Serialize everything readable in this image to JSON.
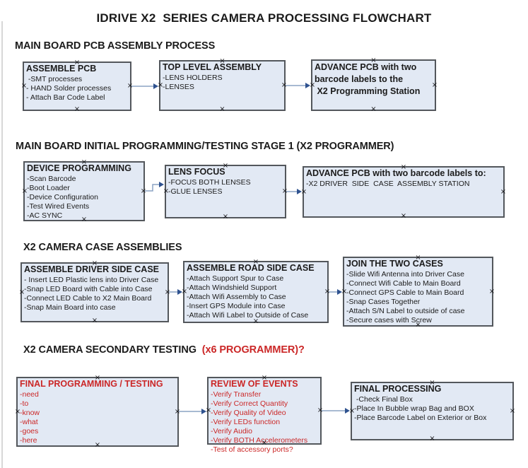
{
  "page": {
    "title": "IDRIVE X2  SERIES CAMERA PROCESSING FLOWCHART"
  },
  "colors": {
    "box_fill": "#e2e9f4",
    "box_border": "#53575c",
    "text_black": "#1b1b1b",
    "text_red": "#cb2727",
    "arrow_line": "#8ba3c4",
    "arrow_head": "#2f528f"
  },
  "icons": {
    "connection_point": "×"
  },
  "sections": [
    {
      "id": "pcb-assembly",
      "heading": [
        {
          "text": "MAIN BOARD PCB ASSEMBLY PROCESS",
          "red": false
        }
      ],
      "boxes": [
        {
          "id": "assemble-pcb",
          "red": false,
          "title_lines": [
            "ASSEMBLE PCB"
          ],
          "items": [
            " -SMT processes",
            "- HAND Solder processes",
            "- Attach Bar Code Label"
          ]
        },
        {
          "id": "top-level-assembly",
          "red": false,
          "title_lines": [
            "TOP LEVEL ASSEMBLY"
          ],
          "items": [
            "-LENS HOLDERS",
            "-LENSES"
          ]
        },
        {
          "id": "advance-pcb-to-programming",
          "red": false,
          "title_lines": [
            "ADVANCE PCB with two",
            "barcode labels to the",
            " X2 Programming Station"
          ],
          "items": []
        }
      ]
    },
    {
      "id": "initial-programming",
      "heading": [
        {
          "text": "MAIN BOARD INITIAL PROGRAMMING/TESTING STAGE 1 (X2 PROGRAMMER)",
          "red": false
        }
      ],
      "boxes": [
        {
          "id": "device-programming",
          "red": false,
          "title_lines": [
            "DEVICE PROGRAMMING"
          ],
          "items": [
            "-Scan Barcode",
            "-Boot Loader",
            "-Device Configuration",
            "-Test Wired Events",
            "-AC SYNC"
          ]
        },
        {
          "id": "lens-focus",
          "red": false,
          "title_lines": [
            "LENS FOCUS"
          ],
          "items": [
            "-FOCUS BOTH LENSES",
            "-GLUE LENSES"
          ]
        },
        {
          "id": "advance-pcb-to-case-assembly",
          "red": false,
          "title_lines": [
            "ADVANCE PCB with two barcode labels to:"
          ],
          "items": [
            "-X2 DRIVER  SIDE  CASE  ASSEMBLY STATION"
          ]
        }
      ]
    },
    {
      "id": "case-assemblies",
      "heading": [
        {
          "text": "X2 CAMERA CASE ASSEMBLIES",
          "red": false
        }
      ],
      "boxes": [
        {
          "id": "assemble-driver-side-case",
          "red": false,
          "title_lines": [
            "ASSEMBLE DRIVER SIDE CASE"
          ],
          "items": [
            "- Insert LED Plastic lens into Driver Case",
            "-Snap LED Board with Cable into Case",
            "-Connect LED Cable to X2 Main Board",
            "-Snap Main Board into case"
          ]
        },
        {
          "id": "assemble-road-side-case",
          "red": false,
          "title_lines": [
            "ASSEMBLE ROAD SIDE CASE"
          ],
          "items": [
            "-Attach Support Spur to Case",
            "-Attach Windshield Support",
            "-Attach Wifi Assembly to Case",
            "-Insert GPS Module into Case",
            "-Attach Wifi Label to Outside of Case"
          ]
        },
        {
          "id": "join-the-two-cases",
          "red": false,
          "title_lines": [
            "JOIN THE TWO CASES"
          ],
          "items": [
            "-Slide Wifi Antenna into Driver Case",
            "-Connect Wifi Cable to Main Board",
            "-Connect GPS Cable to Main Board",
            "-Snap Cases Together",
            "-Attach S/N Label to outside of case",
            "-Secure cases with Screw"
          ]
        }
      ]
    },
    {
      "id": "secondary-testing",
      "heading": [
        {
          "text": "X2 CAMERA SECONDARY TESTING  ",
          "red": false
        },
        {
          "text": "(x6 PROGRAMMER)?",
          "red": true
        }
      ],
      "boxes": [
        {
          "id": "final-programming-testing",
          "red": true,
          "title_lines": [
            "FINAL PROGRAMMING / TESTING"
          ],
          "items": [
            "-need",
            "-to",
            "-know",
            "-what",
            "-goes",
            "-here"
          ]
        },
        {
          "id": "review-of-events",
          "red": true,
          "title_lines": [
            "REVIEW OF EVENTS"
          ],
          "items": [
            "-Verify Transfer",
            "-Verify Correct Quantity",
            "-Verify Quality of Video",
            "-Verify LEDs function",
            "-Verify Audio",
            "-Verify BOTH Accelerometers",
            "-Test of accessory ports?"
          ]
        },
        {
          "id": "final-processing",
          "red": false,
          "title_lines": [
            "FINAL PROCESSING"
          ],
          "items": [
            " -Check Final Box",
            "-Place In Bubble wrap Bag and BOX",
            "-Place Barcode Label on Exterior or Box"
          ]
        }
      ]
    }
  ],
  "connections": [
    {
      "from": "assemble-pcb",
      "to": "top-level-assembly",
      "style": "straight"
    },
    {
      "from": "top-level-assembly",
      "to": "advance-pcb-to-programming",
      "style": "straight"
    },
    {
      "from": "device-programming",
      "to": "lens-focus",
      "style": "elbow-up"
    },
    {
      "from": "lens-focus",
      "to": "advance-pcb-to-case-assembly",
      "style": "straight"
    },
    {
      "from": "assemble-driver-side-case",
      "to": "assemble-road-side-case",
      "style": "straight"
    },
    {
      "from": "assemble-road-side-case",
      "to": "join-the-two-cases",
      "style": "straight"
    },
    {
      "from": "final-programming-testing",
      "to": "review-of-events",
      "style": "straight"
    },
    {
      "from": "review-of-events",
      "to": "final-processing",
      "style": "straight"
    }
  ]
}
